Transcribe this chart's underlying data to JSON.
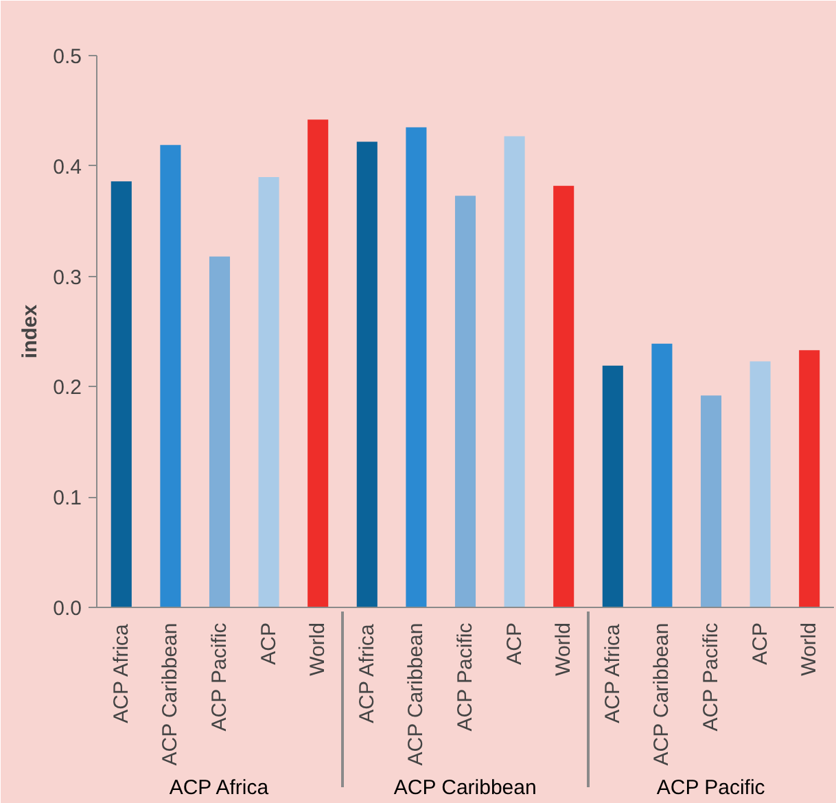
{
  "chart_data": {
    "type": "bar",
    "ylabel": "index",
    "categories": [
      "ACP Africa",
      "ACP Caribbean",
      "ACP Pacific",
      "ACP",
      "World",
      "ACP Africa",
      "ACP Caribbean",
      "ACP Pacific",
      "ACP",
      "World",
      "ACP Africa",
      "ACP Caribbean",
      "ACP Pacific",
      "ACP",
      "World"
    ],
    "values": [
      0.386,
      0.419,
      0.318,
      0.39,
      0.442,
      0.422,
      0.435,
      0.373,
      0.427,
      0.382,
      0.219,
      0.239,
      0.192,
      0.223,
      0.233
    ],
    "colors": [
      "#0b6399",
      "#2b8ad2",
      "#7eaed8",
      "#a9cbe8",
      "#ee2e2a",
      "#0b6399",
      "#2b8ad2",
      "#7eaed8",
      "#a9cbe8",
      "#ee2e2a",
      "#0b6399",
      "#2b8ad2",
      "#7eaed8",
      "#a9cbe8",
      "#ee2e2a"
    ],
    "annotations": [
      "ACP Africa",
      "ACP Caribbean",
      "ACP Pacific"
    ],
    "ylim": [
      0,
      0.5
    ],
    "yticks": [
      {
        "value": 0,
        "label": "0.0"
      },
      0.1,
      0.2,
      0.3,
      0.4,
      0.5
    ]
  }
}
